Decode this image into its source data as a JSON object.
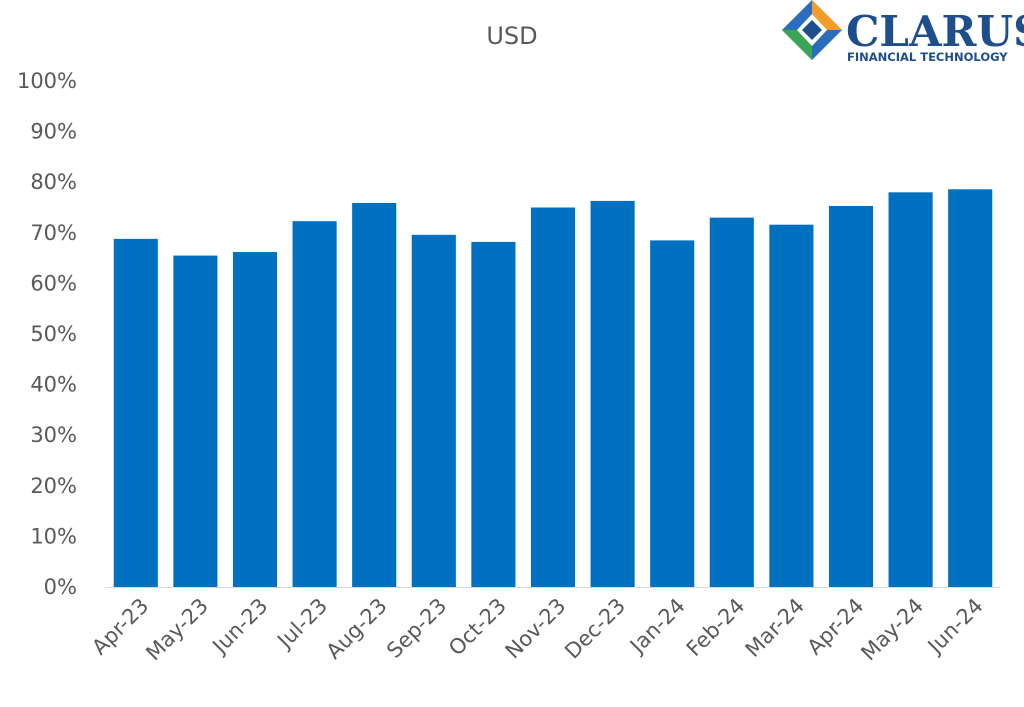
{
  "logo": {
    "wordmark": "CLARUS",
    "tagline": "FINANCIAL TECHNOLOGY",
    "colors": {
      "brand_blue": "#1f4e8c",
      "diamond_orange": "#f39c2a",
      "diamond_green": "#3aa655",
      "diamond_blue": "#2a6ebb"
    }
  },
  "chart_data": {
    "type": "bar",
    "title": "USD",
    "xlabel": "",
    "ylabel": "",
    "categories": [
      "Apr-23",
      "May-23",
      "Jun-23",
      "Jul-23",
      "Aug-23",
      "Sep-23",
      "Oct-23",
      "Nov-23",
      "Dec-23",
      "Jan-24",
      "Feb-24",
      "Mar-24",
      "Apr-24",
      "May-24",
      "Jun-24"
    ],
    "values": [
      68.8,
      65.5,
      66.2,
      72.3,
      75.9,
      69.6,
      68.2,
      75.0,
      76.3,
      68.5,
      73.0,
      71.6,
      75.3,
      78.0,
      78.6
    ],
    "value_format": "percent",
    "ylim": [
      0,
      100
    ],
    "yticks": [
      {
        "value": 0,
        "label": "0%"
      },
      {
        "value": 10,
        "label": "10%"
      },
      {
        "value": 20,
        "label": "20%"
      },
      {
        "value": 30,
        "label": "30%"
      },
      {
        "value": 40,
        "label": "40%"
      },
      {
        "value": 50,
        "label": "50%"
      },
      {
        "value": 60,
        "label": "60%"
      },
      {
        "value": 70,
        "label": "70%"
      },
      {
        "value": 80,
        "label": "80%"
      },
      {
        "value": 90,
        "label": "90%"
      },
      {
        "value": 100,
        "label": "100%"
      }
    ],
    "grid": false,
    "legend": "none",
    "bar_color": "#0070c0",
    "text_color": "#595959",
    "axis_color": "#d9d9d9"
  }
}
